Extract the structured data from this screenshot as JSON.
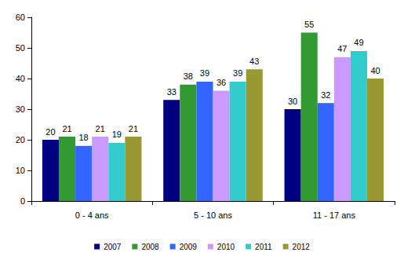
{
  "chart_data": {
    "type": "bar",
    "categories": [
      "0 - 4 ans",
      "5 - 10 ans",
      "11 - 17 ans"
    ],
    "series": [
      {
        "name": "2007",
        "color": "#000080",
        "values": [
          20,
          33,
          30
        ]
      },
      {
        "name": "2008",
        "color": "#339933",
        "values": [
          21,
          38,
          55
        ]
      },
      {
        "name": "2009",
        "color": "#3366ff",
        "values": [
          18,
          39,
          32
        ]
      },
      {
        "name": "2010",
        "color": "#cc99ff",
        "values": [
          21,
          36,
          47
        ]
      },
      {
        "name": "2011",
        "color": "#33cccc",
        "values": [
          19,
          39,
          49
        ]
      },
      {
        "name": "2012",
        "color": "#999933",
        "values": [
          21,
          43,
          40
        ]
      }
    ],
    "ylim": [
      0,
      60
    ],
    "yticks": [
      0,
      10,
      20,
      30,
      40,
      50,
      60
    ],
    "grid": false,
    "legend": "bottom",
    "data_labels": true
  }
}
